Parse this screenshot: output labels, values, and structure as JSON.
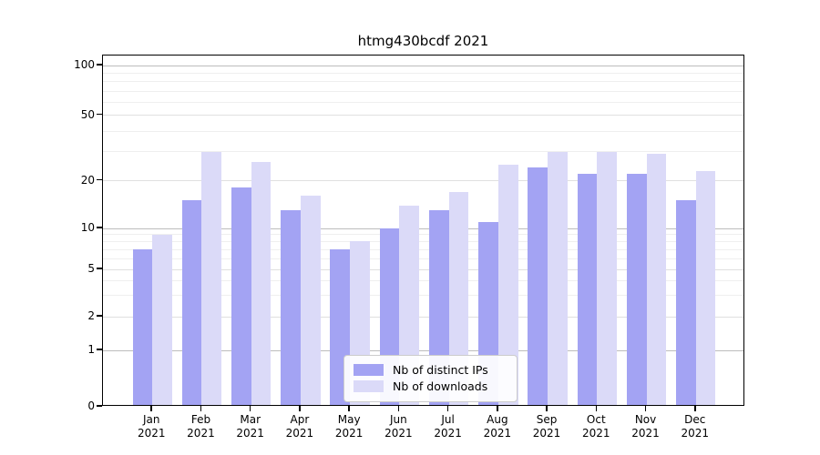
{
  "title": "htmg430bcdf 2021",
  "chart_data": {
    "type": "bar",
    "title": "htmg430bcdf 2021",
    "categories": [
      "Jan 2021",
      "Feb 2021",
      "Mar 2021",
      "Apr 2021",
      "May 2021",
      "Jun 2021",
      "Jul 2021",
      "Aug 2021",
      "Sep 2021",
      "Oct 2021",
      "Nov 2021",
      "Dec 2021"
    ],
    "series": [
      {
        "name": "Nb of distinct IPs",
        "color": "#a3a3f3",
        "values": [
          7,
          15,
          18,
          13,
          7,
          10,
          13,
          11,
          24,
          22,
          22,
          15
        ]
      },
      {
        "name": "Nb of downloads",
        "color": "#dbdaf8",
        "values": [
          9,
          30,
          26,
          16,
          8,
          14,
          17,
          25,
          30,
          30,
          29,
          23
        ]
      }
    ],
    "xlabel": "",
    "ylabel": "",
    "yscale": "symlog",
    "y_ticks": [
      0,
      1,
      2,
      5,
      10,
      20,
      50,
      100
    ],
    "ylim": [
      0,
      120
    ],
    "grid": "both",
    "legend_position": "lower center"
  },
  "colors": {
    "bar_ips": "#a3a3f3",
    "bar_downloads": "#dbdaf8",
    "grid_major": "#bdbdbd",
    "grid_minor": "#efefef",
    "axis": "#000000",
    "legend_border": "#cccccc"
  }
}
